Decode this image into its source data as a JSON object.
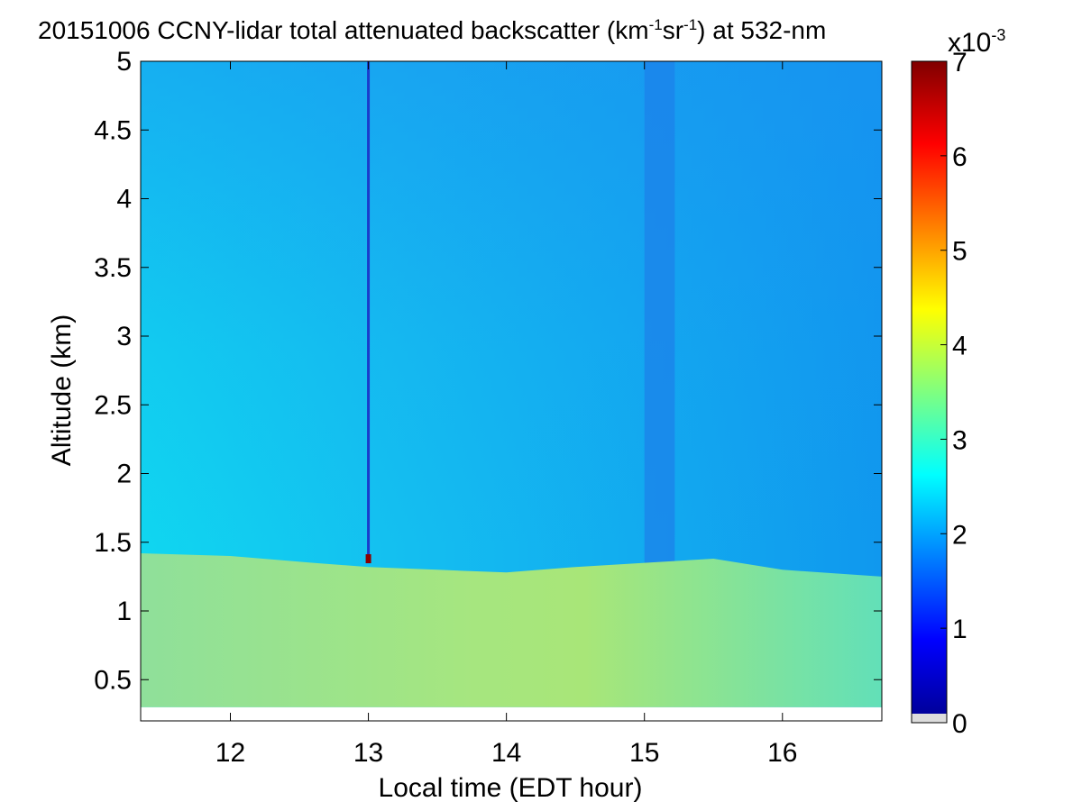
{
  "chart_data": {
    "type": "heatmap",
    "title_main": "20151006 CCNY-lidar total attenuated backscatter (km",
    "title_exp1": "-1",
    "title_mid": "sr",
    "title_exp2": "-1",
    "title_end": ") at 532-nm",
    "xlabel": "Local time (EDT hour)",
    "ylabel": "Altitude (km)",
    "xlim": [
      11.35,
      16.72
    ],
    "ylim": [
      0.2,
      5.0
    ],
    "data_ylim": [
      0.3,
      5.0
    ],
    "xticks": [
      12,
      13,
      14,
      15,
      16
    ],
    "xtick_labels": [
      "12",
      "13",
      "14",
      "15",
      "16"
    ],
    "yticks": [
      0.5,
      1,
      1.5,
      2,
      2.5,
      3,
      3.5,
      4,
      4.5,
      5
    ],
    "ytick_labels": [
      "0.5",
      "1",
      "1.5",
      "2",
      "2.5",
      "3",
      "3.5",
      "4",
      "4.5",
      "5"
    ],
    "colorbar": {
      "ticks": [
        0,
        1,
        2,
        3,
        4,
        5,
        6,
        7
      ],
      "tick_labels": [
        "0",
        "1",
        "2",
        "3",
        "4",
        "5",
        "6",
        "7"
      ],
      "clim": [
        0,
        7
      ],
      "multiplier_base": "x10",
      "multiplier_exp": "-3",
      "colormap": "jet"
    },
    "features": {
      "boundary_layer_top_km": [
        [
          11.35,
          1.42
        ],
        [
          12.0,
          1.4
        ],
        [
          12.6,
          1.35
        ],
        [
          13.0,
          1.32
        ],
        [
          13.5,
          1.3
        ],
        [
          14.0,
          1.28
        ],
        [
          14.5,
          1.32
        ],
        [
          15.0,
          1.35
        ],
        [
          15.5,
          1.38
        ],
        [
          16.0,
          1.3
        ],
        [
          16.72,
          1.25
        ]
      ],
      "aerosol_layer_value": 3.6,
      "free_troposphere_value_low": 2.8,
      "free_troposphere_value_high": 2.0,
      "dark_column_time": 13.0,
      "dark_column_value": 0.9,
      "shadow_column_time_range": [
        15.0,
        15.22
      ],
      "shadow_column_value": 1.75,
      "hot_pixel_time": 13.0,
      "hot_pixel_alt_km": 1.38,
      "hot_pixel_value": 7.0
    }
  }
}
